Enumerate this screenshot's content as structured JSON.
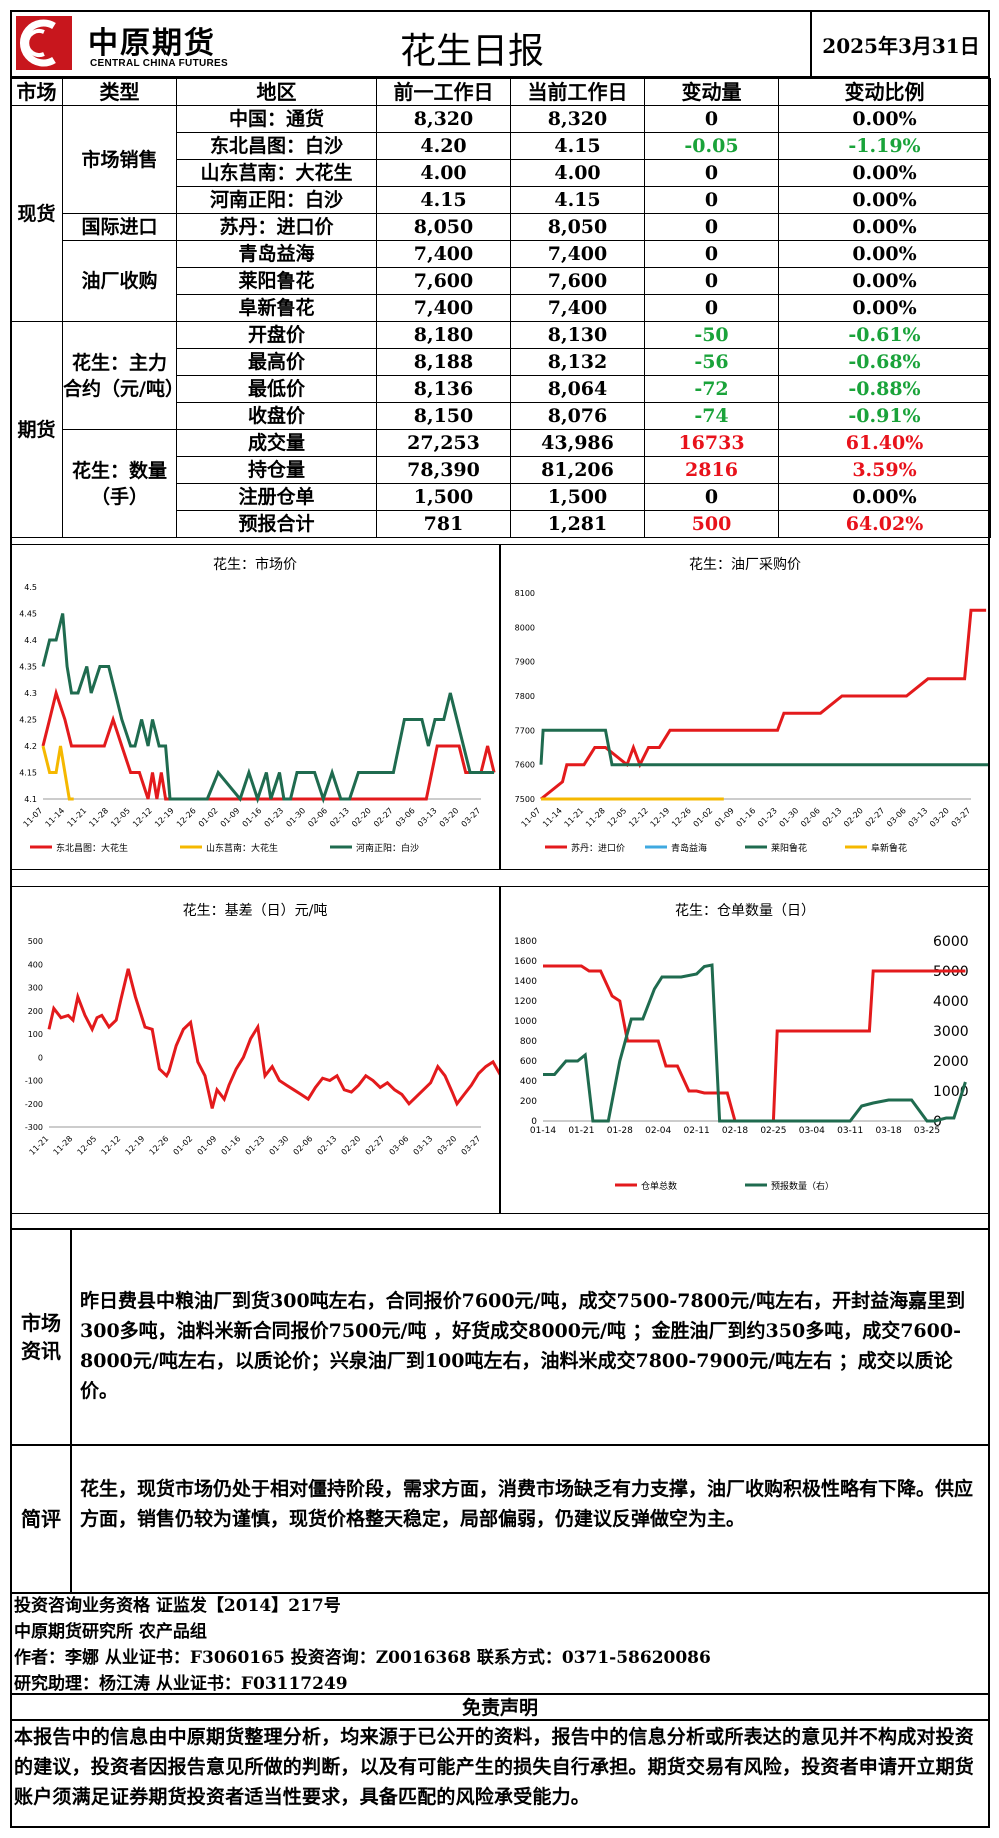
{
  "header": {
    "logo_cn": "中原期货",
    "logo_en": "CENTRAL CHINA FUTURES",
    "title": "花生日报",
    "date": "2025年3月31日"
  },
  "table": {
    "columns": [
      "市场",
      "类型",
      "地区",
      "前一工作日",
      "当前工作日",
      "变动量",
      "变动比例"
    ],
    "spot_label": "现货",
    "futures_label": "期货",
    "groups": {
      "market_sales": "市场销售",
      "import": "国际进口",
      "oil_mill": "油厂收购",
      "main_contract": "花生：主力合约（元/吨）",
      "quantity": "花生：数量（手）"
    },
    "rows": [
      {
        "region": "中国：通货",
        "prev": "8,320",
        "curr": "8,320",
        "chg": "0",
        "pct": "0.00%",
        "color": ""
      },
      {
        "region": "东北昌图：白沙",
        "prev": "4.20",
        "curr": "4.15",
        "chg": "-0.05",
        "pct": "-1.19%",
        "color": "green"
      },
      {
        "region": "山东莒南：大花生",
        "prev": "4.00",
        "curr": "4.00",
        "chg": "0",
        "pct": "0.00%",
        "color": ""
      },
      {
        "region": "河南正阳：白沙",
        "prev": "4.15",
        "curr": "4.15",
        "chg": "0",
        "pct": "0.00%",
        "color": ""
      },
      {
        "region": "苏丹：进口价",
        "prev": "8,050",
        "curr": "8,050",
        "chg": "0",
        "pct": "0.00%",
        "color": ""
      },
      {
        "region": "青岛益海",
        "prev": "7,400",
        "curr": "7,400",
        "chg": "0",
        "pct": "0.00%",
        "color": ""
      },
      {
        "region": "莱阳鲁花",
        "prev": "7,600",
        "curr": "7,600",
        "chg": "0",
        "pct": "0.00%",
        "color": ""
      },
      {
        "region": "阜新鲁花",
        "prev": "7,400",
        "curr": "7,400",
        "chg": "0",
        "pct": "0.00%",
        "color": ""
      },
      {
        "region": "开盘价",
        "prev": "8,180",
        "curr": "8,130",
        "chg": "-50",
        "pct": "-0.61%",
        "color": "green"
      },
      {
        "region": "最高价",
        "prev": "8,188",
        "curr": "8,132",
        "chg": "-56",
        "pct": "-0.68%",
        "color": "green"
      },
      {
        "region": "最低价",
        "prev": "8,136",
        "curr": "8,064",
        "chg": "-72",
        "pct": "-0.88%",
        "color": "green"
      },
      {
        "region": "收盘价",
        "prev": "8,150",
        "curr": "8,076",
        "chg": "-74",
        "pct": "-0.91%",
        "color": "green"
      },
      {
        "region": "成交量",
        "prev": "27,253",
        "curr": "43,986",
        "chg": "16733",
        "pct": "61.40%",
        "color": "red"
      },
      {
        "region": "持仓量",
        "prev": "78,390",
        "curr": "81,206",
        "chg": "2816",
        "pct": "3.59%",
        "color": "red"
      },
      {
        "region": "注册仓单",
        "prev": "1,500",
        "curr": "1,500",
        "chg": "0",
        "pct": "0.00%",
        "color": ""
      },
      {
        "region": "预报合计",
        "prev": "781",
        "curr": "1,281",
        "chg": "500",
        "pct": "64.02%",
        "color": "red"
      }
    ]
  },
  "colors": {
    "red": "#e31a1c",
    "green": "#1f6b4f",
    "yellow": "#f5b800",
    "blue": "#3fa9e0",
    "pos": "#e8121b",
    "neg": "#1aa33a"
  },
  "chart_data": [
    {
      "type": "line",
      "title": "花生：市场价",
      "ylim": [
        4.1,
        4.5
      ],
      "yticks": [
        "4.1",
        "4.15",
        "4.2",
        "4.25",
        "4.3",
        "4.35",
        "4.4",
        "4.45",
        "4.5"
      ],
      "xticks": [
        "11-07",
        "11-14",
        "11-21",
        "11-28",
        "12-05",
        "12-12",
        "12-19",
        "12-26",
        "01-02",
        "01-09",
        "01-16",
        "01-23",
        "01-30",
        "02-06",
        "02-13",
        "02-20",
        "02-27",
        "03-06",
        "03-13",
        "03-20",
        "03-27"
      ],
      "legend": [
        "东北昌图：大花生",
        "山东莒南：大花生",
        "河南正阳：白沙"
      ],
      "series": [
        {
          "name": "东北昌图：大花生",
          "color": "red",
          "x": [
            0,
            0.3,
            0.6,
            1,
            1.3,
            1.6,
            2,
            2.4,
            2.8,
            3.2,
            3.6,
            4,
            4.4,
            4.8,
            5,
            5.2,
            5.4,
            5.6,
            14.1,
            17.5,
            18,
            18.4,
            18.8,
            19,
            19.3,
            19.6,
            20,
            20.3,
            20.6
          ],
          "values": [
            4.2,
            4.25,
            4.3,
            4.25,
            4.2,
            4.2,
            4.2,
            4.2,
            4.2,
            4.25,
            4.2,
            4.15,
            4.15,
            4.1,
            4.15,
            4.1,
            4.15,
            4.1,
            4.1,
            4.1,
            4.2,
            4.2,
            4.2,
            4.2,
            4.15,
            4.15,
            4.15,
            4.2,
            4.15
          ]
        },
        {
          "name": "山东莒南：大花生",
          "color": "yellow",
          "x": [
            0,
            0.3,
            0.6,
            0.8,
            1,
            1.2,
            1.4
          ],
          "values": [
            4.2,
            4.15,
            4.15,
            4.2,
            4.15,
            4.1,
            4.1
          ]
        },
        {
          "name": "河南正阳：白沙",
          "color": "green",
          "x": [
            0,
            0.3,
            0.6,
            0.9,
            1.1,
            1.3,
            1.6,
            2,
            2.2,
            2.6,
            3,
            3.3,
            3.6,
            4,
            4.2,
            4.5,
            4.8,
            5,
            5.3,
            5.6,
            5.8,
            6,
            6.3,
            6.6,
            7,
            7.5,
            8,
            9,
            9.4,
            9.8,
            10.2,
            10.4,
            10.8,
            11,
            11.3,
            11.6,
            12,
            12.4,
            12.8,
            13.2,
            13.6,
            14,
            14.4,
            15,
            15.5,
            16,
            16.5,
            17,
            17.3,
            17.6,
            17.9,
            18,
            18.3,
            18.6,
            18.9,
            19.2,
            19.5,
            19.8,
            20.2,
            20.6
          ],
          "values": [
            4.35,
            4.4,
            4.4,
            4.45,
            4.35,
            4.3,
            4.3,
            4.35,
            4.3,
            4.35,
            4.35,
            4.3,
            4.25,
            4.2,
            4.2,
            4.25,
            4.2,
            4.25,
            4.2,
            4.2,
            4.1,
            4.1,
            4.1,
            4.1,
            4.1,
            4.1,
            4.15,
            4.1,
            4.15,
            4.1,
            4.15,
            4.1,
            4.15,
            4.1,
            4.1,
            4.15,
            4.15,
            4.15,
            4.1,
            4.15,
            4.1,
            4.1,
            4.15,
            4.15,
            4.15,
            4.15,
            4.25,
            4.25,
            4.25,
            4.2,
            4.25,
            4.25,
            4.25,
            4.3,
            4.25,
            4.2,
            4.15,
            4.15,
            4.15,
            4.15
          ]
        }
      ]
    },
    {
      "type": "line",
      "title": "花生：油厂采购价",
      "ylim": [
        7500,
        8100
      ],
      "yticks": [
        "7500",
        "7600",
        "7700",
        "7800",
        "7900",
        "8000",
        "8100"
      ],
      "xticks": [
        "11-07",
        "11-14",
        "11-21",
        "11-28",
        "12-05",
        "12-12",
        "12-19",
        "12-26",
        "01-02",
        "01-09",
        "01-16",
        "01-23",
        "01-30",
        "02-06",
        "02-13",
        "02-20",
        "02-27",
        "03-06",
        "03-13",
        "03-20",
        "03-27"
      ],
      "legend": [
        "苏丹：进口价",
        "青岛益海",
        "莱阳鲁花",
        "阜新鲁花"
      ],
      "series": [
        {
          "name": "苏丹：进口价",
          "color": "red",
          "x": [
            0,
            1,
            1.2,
            2,
            2.5,
            3,
            4,
            4.3,
            4.6,
            5,
            5.5,
            6,
            7,
            9,
            10,
            11,
            11.3,
            12,
            13,
            14,
            14.2,
            15,
            16,
            16.3,
            17,
            18,
            18.3,
            19,
            19.7,
            20,
            20.4,
            20.7
          ],
          "values": [
            7500,
            7550,
            7600,
            7600,
            7650,
            7650,
            7600,
            7650,
            7600,
            7650,
            7650,
            7700,
            7700,
            7700,
            7700,
            7700,
            7750,
            7750,
            7750,
            7800,
            7800,
            7800,
            7800,
            7800,
            7800,
            7850,
            7850,
            7850,
            7850,
            8050,
            8050,
            8050
          ]
        },
        {
          "name": "青岛益海",
          "color": "blue",
          "x": [],
          "values": []
        },
        {
          "name": "莱阳鲁花",
          "color": "green",
          "x": [
            0,
            0.1,
            3,
            3.3,
            4,
            6,
            10,
            15,
            20,
            21
          ],
          "values": [
            7600,
            7700,
            7700,
            7600,
            7600,
            7600,
            7600,
            7600,
            7600,
            7600
          ]
        },
        {
          "name": "阜新鲁花",
          "color": "yellow",
          "x": [
            0,
            1.6,
            2.5,
            3,
            6,
            6.5,
            7,
            7.8,
            8.5
          ],
          "values": [
            7500,
            7500,
            7500,
            7500,
            7500,
            7500,
            7500,
            7500,
            7500
          ]
        }
      ]
    },
    {
      "type": "line",
      "title": "花生：基差（日）元/吨",
      "ylim": [
        -300,
        500
      ],
      "yticks": [
        "-300",
        "-200",
        "-100",
        "0",
        "100",
        "200",
        "300",
        "400",
        "500"
      ],
      "xticks": [
        "11-21",
        "11-28",
        "12-05",
        "12-12",
        "12-19",
        "12-26",
        "01-02",
        "01-09",
        "01-16",
        "01-23",
        "01-30",
        "02-06",
        "02-13",
        "02-20",
        "02-27",
        "03-06",
        "03-13",
        "03-20",
        "03-27"
      ],
      "series": [
        {
          "name": "基差",
          "color": "red",
          "x": [
            0,
            0.2,
            0.5,
            0.8,
            1,
            1.2,
            1.5,
            1.8,
            2,
            2.2,
            2.5,
            2.8,
            3,
            3.3,
            3.6,
            4,
            4.3,
            4.6,
            4.9,
            5,
            5.3,
            5.6,
            5.9,
            6.2,
            6.5,
            6.8,
            7,
            7.3,
            7.5,
            7.8,
            8.1,
            8.4,
            8.7,
            9,
            9.3,
            9.6,
            9.9,
            10.2,
            10.5,
            10.8,
            11.1,
            11.4,
            11.7,
            12,
            12.3,
            12.6,
            12.9,
            13.2,
            13.5,
            13.8,
            14.1,
            14.4,
            14.7,
            15,
            15.3,
            15.6,
            15.9,
            16.2,
            16.5,
            16.8,
            17,
            17.3,
            17.6,
            17.9,
            18.2,
            18.5,
            18.8
          ],
          "values": [
            120,
            210,
            170,
            180,
            160,
            260,
            180,
            120,
            170,
            180,
            130,
            160,
            250,
            380,
            260,
            130,
            120,
            -50,
            -80,
            -60,
            50,
            120,
            150,
            -20,
            -80,
            -220,
            -140,
            -180,
            -120,
            -50,
            0,
            80,
            130,
            -80,
            -40,
            -100,
            -120,
            -140,
            -160,
            -180,
            -130,
            -90,
            -100,
            -80,
            -140,
            -150,
            -120,
            -80,
            -100,
            -130,
            -110,
            -140,
            -160,
            -200,
            -170,
            -140,
            -110,
            -40,
            -80,
            -150,
            -200,
            -160,
            -120,
            -70,
            -40,
            -20,
            -75
          ]
        }
      ]
    },
    {
      "type": "line",
      "title": "花生：仓单数量（日）",
      "ylim": [
        0,
        1800
      ],
      "ylim_right": [
        0,
        6000
      ],
      "yticks": [
        "0",
        "200",
        "400",
        "600",
        "800",
        "1000",
        "1200",
        "1400",
        "1600",
        "1800"
      ],
      "yticks_right": [
        "0",
        "1000",
        "2000",
        "3000",
        "4000",
        "5000",
        "6000"
      ],
      "xticks": [
        "01-14",
        "01-21",
        "01-28",
        "02-04",
        "02-11",
        "02-18",
        "02-25",
        "03-04",
        "03-11",
        "03-18",
        "03-25"
      ],
      "legend": [
        "仓单总数",
        "预报数量（右）"
      ],
      "series": [
        {
          "name": "仓单总数",
          "color": "red",
          "x": [
            0,
            0.5,
            1,
            1.2,
            1.5,
            1.8,
            2,
            2.2,
            2.5,
            3,
            3.2,
            3.5,
            3.8,
            4,
            4.2,
            4.6,
            4.8,
            5,
            5.5,
            6,
            6.1,
            6.5,
            7,
            8,
            8.5,
            8.6,
            9,
            9.5,
            10,
            10.5,
            11
          ],
          "values": [
            1550,
            1550,
            1550,
            1500,
            1500,
            1250,
            1200,
            800,
            800,
            800,
            550,
            550,
            300,
            300,
            280,
            280,
            280,
            0,
            0,
            0,
            900,
            900,
            900,
            900,
            900,
            1500,
            1500,
            1500,
            1500,
            1500,
            1500
          ]
        },
        {
          "name": "预报数量（右）",
          "color": "green",
          "x": [
            0,
            0.3,
            0.6,
            0.9,
            1.1,
            1.3,
            1.5,
            1.7,
            2,
            2.3,
            2.6,
            2.9,
            3.1,
            3.3,
            3.6,
            4,
            4.2,
            4.4,
            4.6,
            4.8,
            5,
            6,
            7,
            7.5,
            7.8,
            8,
            8.3,
            8.6,
            9,
            9.3,
            9.6,
            10,
            10.2,
            10.5,
            10.7,
            11
          ],
          "values": [
            1550,
            1550,
            2000,
            2000,
            2200,
            0,
            0,
            0,
            2000,
            3400,
            3400,
            4400,
            4800,
            4800,
            4800,
            4900,
            5150,
            5200,
            0,
            0,
            0,
            0,
            0,
            0,
            0,
            0,
            500,
            600,
            700,
            700,
            700,
            0,
            0,
            100,
            100,
            1300
          ]
        }
      ]
    }
  ],
  "market_info": {
    "label": "市场资讯",
    "text": "昨日费县中粮油厂到货300吨左右，合同报价7600元/吨，成交7500-7800元/吨左右，开封益海嘉里到300多吨，油料米新合同报价7500元/吨 ，好货成交8000元/吨 ；金胜油厂到约350多吨，成交7600-8000元/吨左右，以质论价；兴泉油厂到100吨左右，油料米成交7800-7900元/吨左右 ；成交以质论价。"
  },
  "commentary": {
    "label": "简评",
    "text": "花生，现货市场仍处于相对僵持阶段，需求方面，消费市场缺乏有力支撑，油厂收购积极性略有下降。供应方面，销售仍较为谨慎，现货价格整天稳定，局部偏弱，仍建议反弹做空为主。"
  },
  "footer": {
    "line1": "投资咨询业务资格   证监发【2014】217号",
    "line2": "中原期货研究所   农产品组",
    "line3": "作者：李娜     从业证书：F3060165     投资咨询：Z0016368     联系方式：0371-58620086",
    "line4": "研究助理：杨江涛     从业证书：F03117249"
  },
  "disclaimer": {
    "title": "免责声明",
    "text": "本报告中的信息由中原期货整理分析，均来源于已公开的资料，报告中的信息分析或所表达的意见并不构成对投资的建议，投资者因报告意见所做的判断，以及有可能产生的损失自行承担。期货交易有风险，投资者申请开立期货账户须满足证券期货投资者适当性要求，具备匹配的风险承受能力。"
  }
}
